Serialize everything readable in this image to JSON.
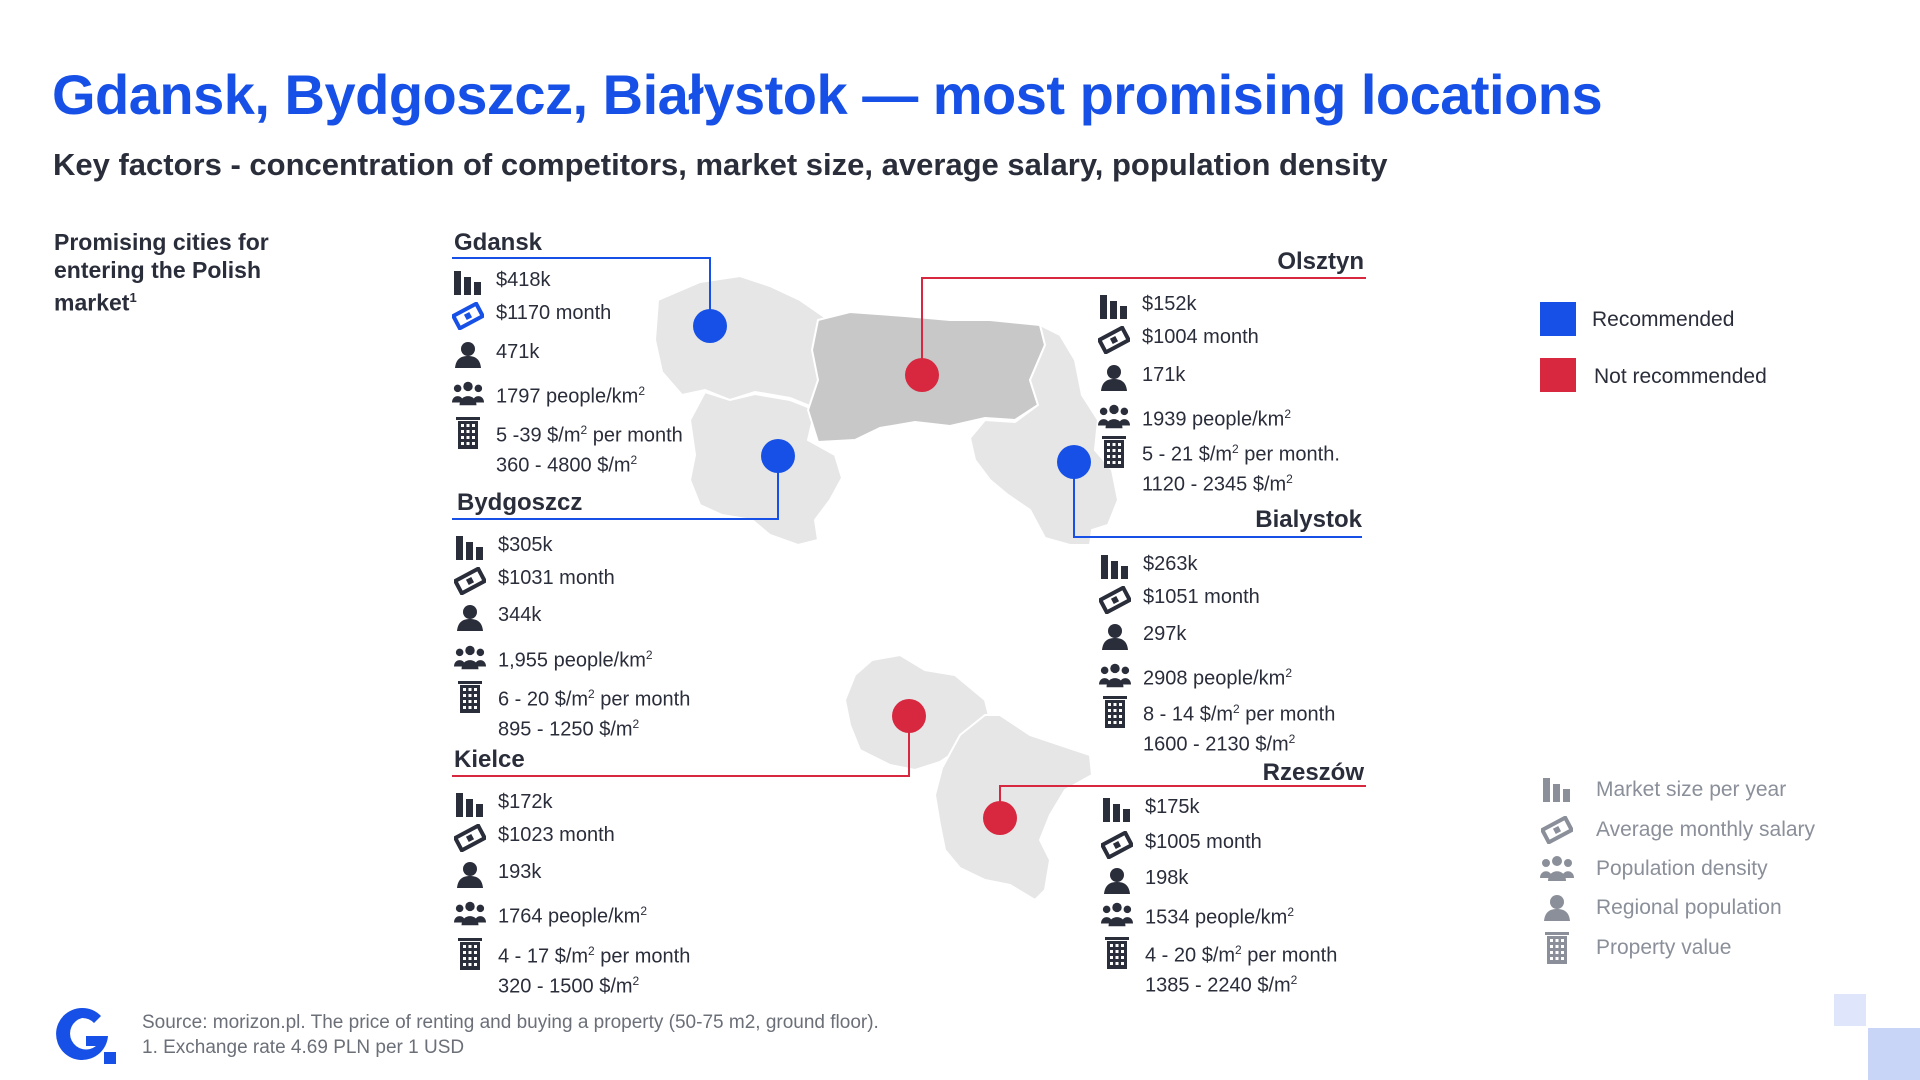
{
  "title": "Gdansk, Bydgoszcz, Białystok — most promising locations",
  "subtitle": "Key factors - concentration of competitors, market size, average salary, population density",
  "sidebar_heading": "Promising cities for entering the Polish market",
  "sidebar_footnote_mark": "1",
  "colors": {
    "recommended": "#1650e6",
    "not_recommended": "#d7283f",
    "region_fill": "#e6e6e6",
    "olsztyn_fill": "#c8c8c8",
    "icon_gray": "#c2c4c8"
  },
  "cities": {
    "gdansk": {
      "name": "Gdansk",
      "status": "recommended",
      "market": "$418k",
      "salary": "$1170 month",
      "population": "471k",
      "density": "1797 people/km",
      "rent": "5 -39 $/m",
      "rent_suffix": " per month",
      "buy": "360 - 4800 $/m"
    },
    "bydgoszcz": {
      "name": "Bydgoszcz",
      "status": "recommended",
      "market": "$305k",
      "salary": "$1031 month",
      "population": "344k",
      "density": "1,955 people/km",
      "rent": "6 - 20 $/m",
      "rent_suffix": " per month",
      "buy": "895 - 1250 $/m"
    },
    "kielce": {
      "name": "Kielce",
      "status": "not_recommended",
      "market": "$172k",
      "salary": "$1023 month",
      "population": "193k",
      "density": "1764 people/km",
      "rent": "4 - 17 $/m",
      "rent_suffix": " per month",
      "buy": "320 - 1500 $/m"
    },
    "olsztyn": {
      "name": "Olsztyn",
      "status": "not_recommended",
      "market": "$152k",
      "salary": "$1004 month",
      "population": "171k",
      "density": "1939 people/km",
      "rent": "5 - 21 $/m",
      "rent_suffix": " per month.",
      "buy": "1120 - 2345 $/m"
    },
    "bialystok": {
      "name": "Bialystok",
      "status": "recommended",
      "market": "$263k",
      "salary": "$1051 month",
      "population": "297k",
      "density": "2908 people/km",
      "rent": "8 - 14 $/m",
      "rent_suffix": " per month",
      "buy": "1600 - 2130 $/m"
    },
    "rzeszow": {
      "name": "Rzeszów",
      "status": "not_recommended",
      "market": "$175k",
      "salary": "$1005 month",
      "population": "198k",
      "density": "1534 people/km",
      "rent": "4 - 20 $/m",
      "rent_suffix": " per month",
      "buy": "1385 - 2240 $/m"
    }
  },
  "superscript_2": "2",
  "legend": {
    "recommended": "Recommended",
    "not_recommended": "Not recommended"
  },
  "key": {
    "market": "Market size per year",
    "salary": "Average monthly salary",
    "density": "Population density",
    "population": "Regional population",
    "property": "Property value"
  },
  "icons": {
    "market": "bar-chart-icon",
    "salary": "money-icon",
    "population": "person-icon",
    "density": "group-icon",
    "property": "building-icon"
  },
  "source_line1": "Source: morizon.pl. The price of renting and buying a property (50-75 m2, ground floor).",
  "source_line2": "1. Exchange rate 4.69 PLN per 1 USD"
}
